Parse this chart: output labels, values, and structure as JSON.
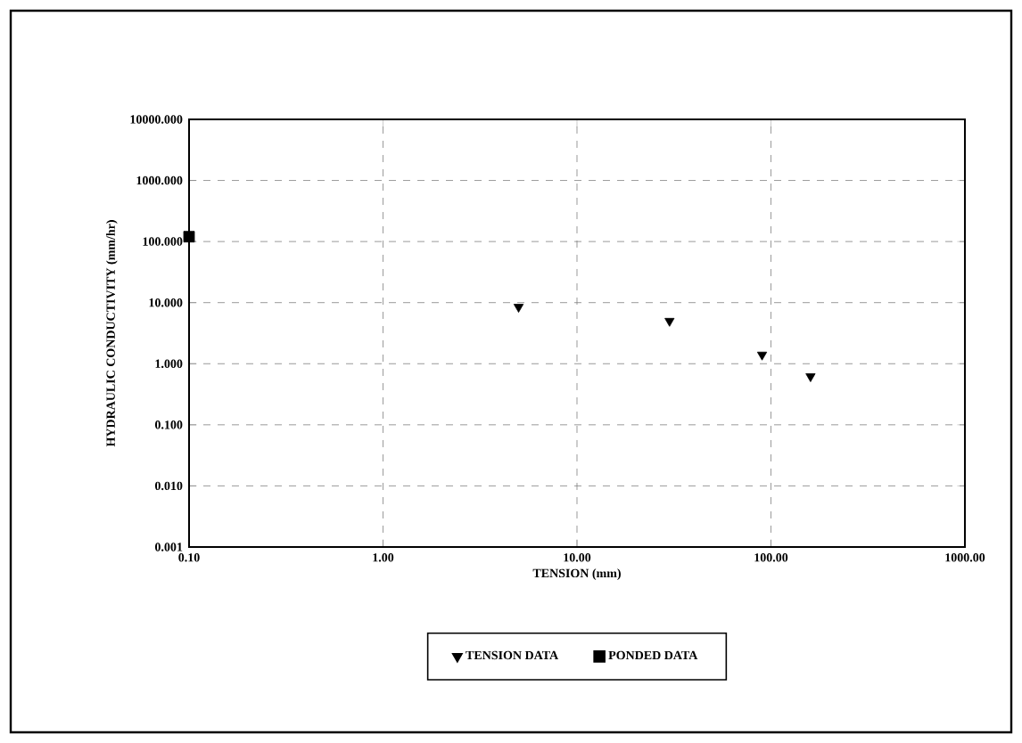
{
  "chart_data": {
    "type": "scatter",
    "xlabel": "TENSION (mm)",
    "ylabel": "HYDRAULIC CONDUCTIVITY (mm/hr)",
    "log": "xy",
    "grid": true,
    "legend": "bottom",
    "xlim": [
      0.1,
      1000
    ],
    "ylim": [
      0.001,
      10000
    ],
    "xticks": [
      {
        "value": 0.1,
        "label": "0.10"
      },
      {
        "value": 1,
        "label": "1.00"
      },
      {
        "value": 10,
        "label": "10.00"
      },
      {
        "value": 100,
        "label": "100.00"
      },
      {
        "value": 1000,
        "label": "1000.00"
      }
    ],
    "yticks": [
      {
        "value": 0.001,
        "label": "0.001"
      },
      {
        "value": 0.01,
        "label": "0.010"
      },
      {
        "value": 0.1,
        "label": "0.100"
      },
      {
        "value": 1,
        "label": "1.000"
      },
      {
        "value": 10,
        "label": "10.000"
      },
      {
        "value": 100,
        "label": "100.000"
      },
      {
        "value": 1000,
        "label": "1000.000"
      },
      {
        "value": 10000,
        "label": "10000.000"
      }
    ],
    "series": [
      {
        "name": "TENSION DATA",
        "color": "#000000",
        "marker": "triangle",
        "x": [
          5,
          30,
          90,
          160
        ],
        "values": [
          8.5,
          5,
          1.4,
          0.62
        ]
      },
      {
        "name": "PONDED DATA",
        "color": "#000000",
        "marker": "square",
        "x": [
          0.1
        ],
        "values": [
          120
        ]
      }
    ]
  }
}
